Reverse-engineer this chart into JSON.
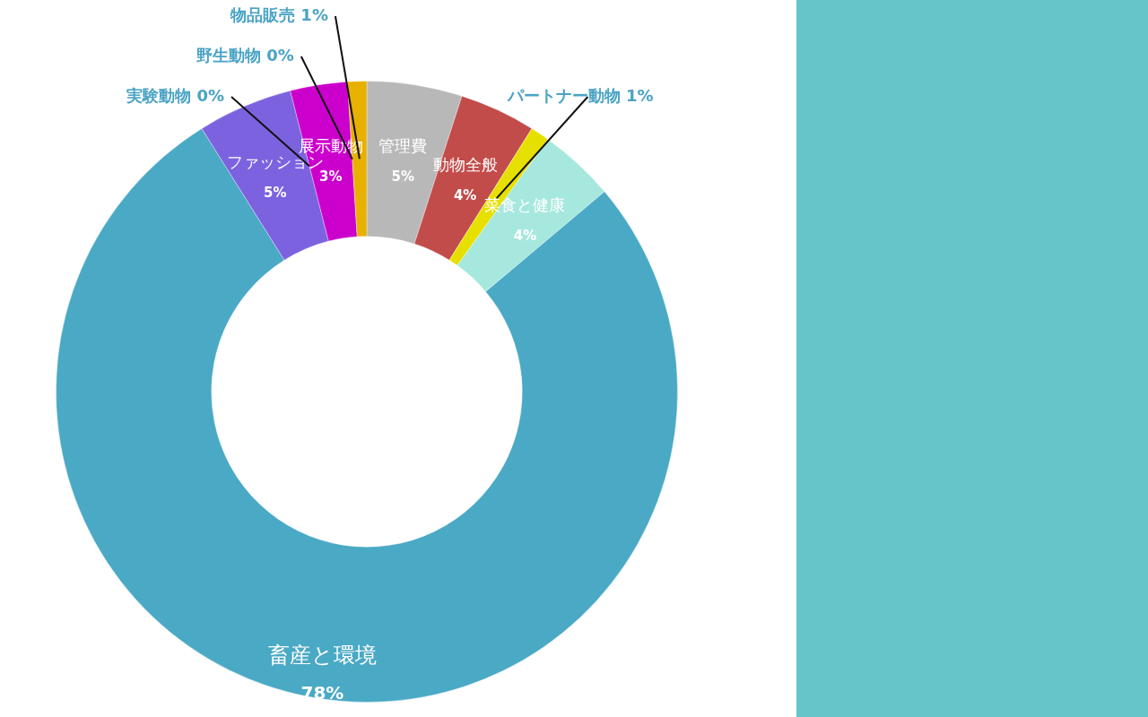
{
  "chart_data": {
    "type": "donut",
    "categories": [
      "管理費",
      "動物全般",
      "パートナー動物",
      "菜食と健康",
      "畜産と環境",
      "ファッション",
      "実験動物",
      "展示動物",
      "野生動物",
      "物品販売"
    ],
    "values": [
      5,
      4,
      1,
      4,
      78,
      5,
      0,
      3,
      0,
      1
    ],
    "value_labels": [
      "5%",
      "4%",
      "1%",
      "4%",
      "78%",
      "5%",
      "0%",
      "3%",
      "0%",
      "1%"
    ],
    "colors": [
      "#b8b8b8",
      "#c24c4a",
      "#e6e000",
      "#a6e8de",
      "#4aa9c5",
      "#7d62e0",
      "#3d8fa8",
      "#cc00cc",
      "#3a7fa6",
      "#e8b000"
    ],
    "legend": false
  }
}
